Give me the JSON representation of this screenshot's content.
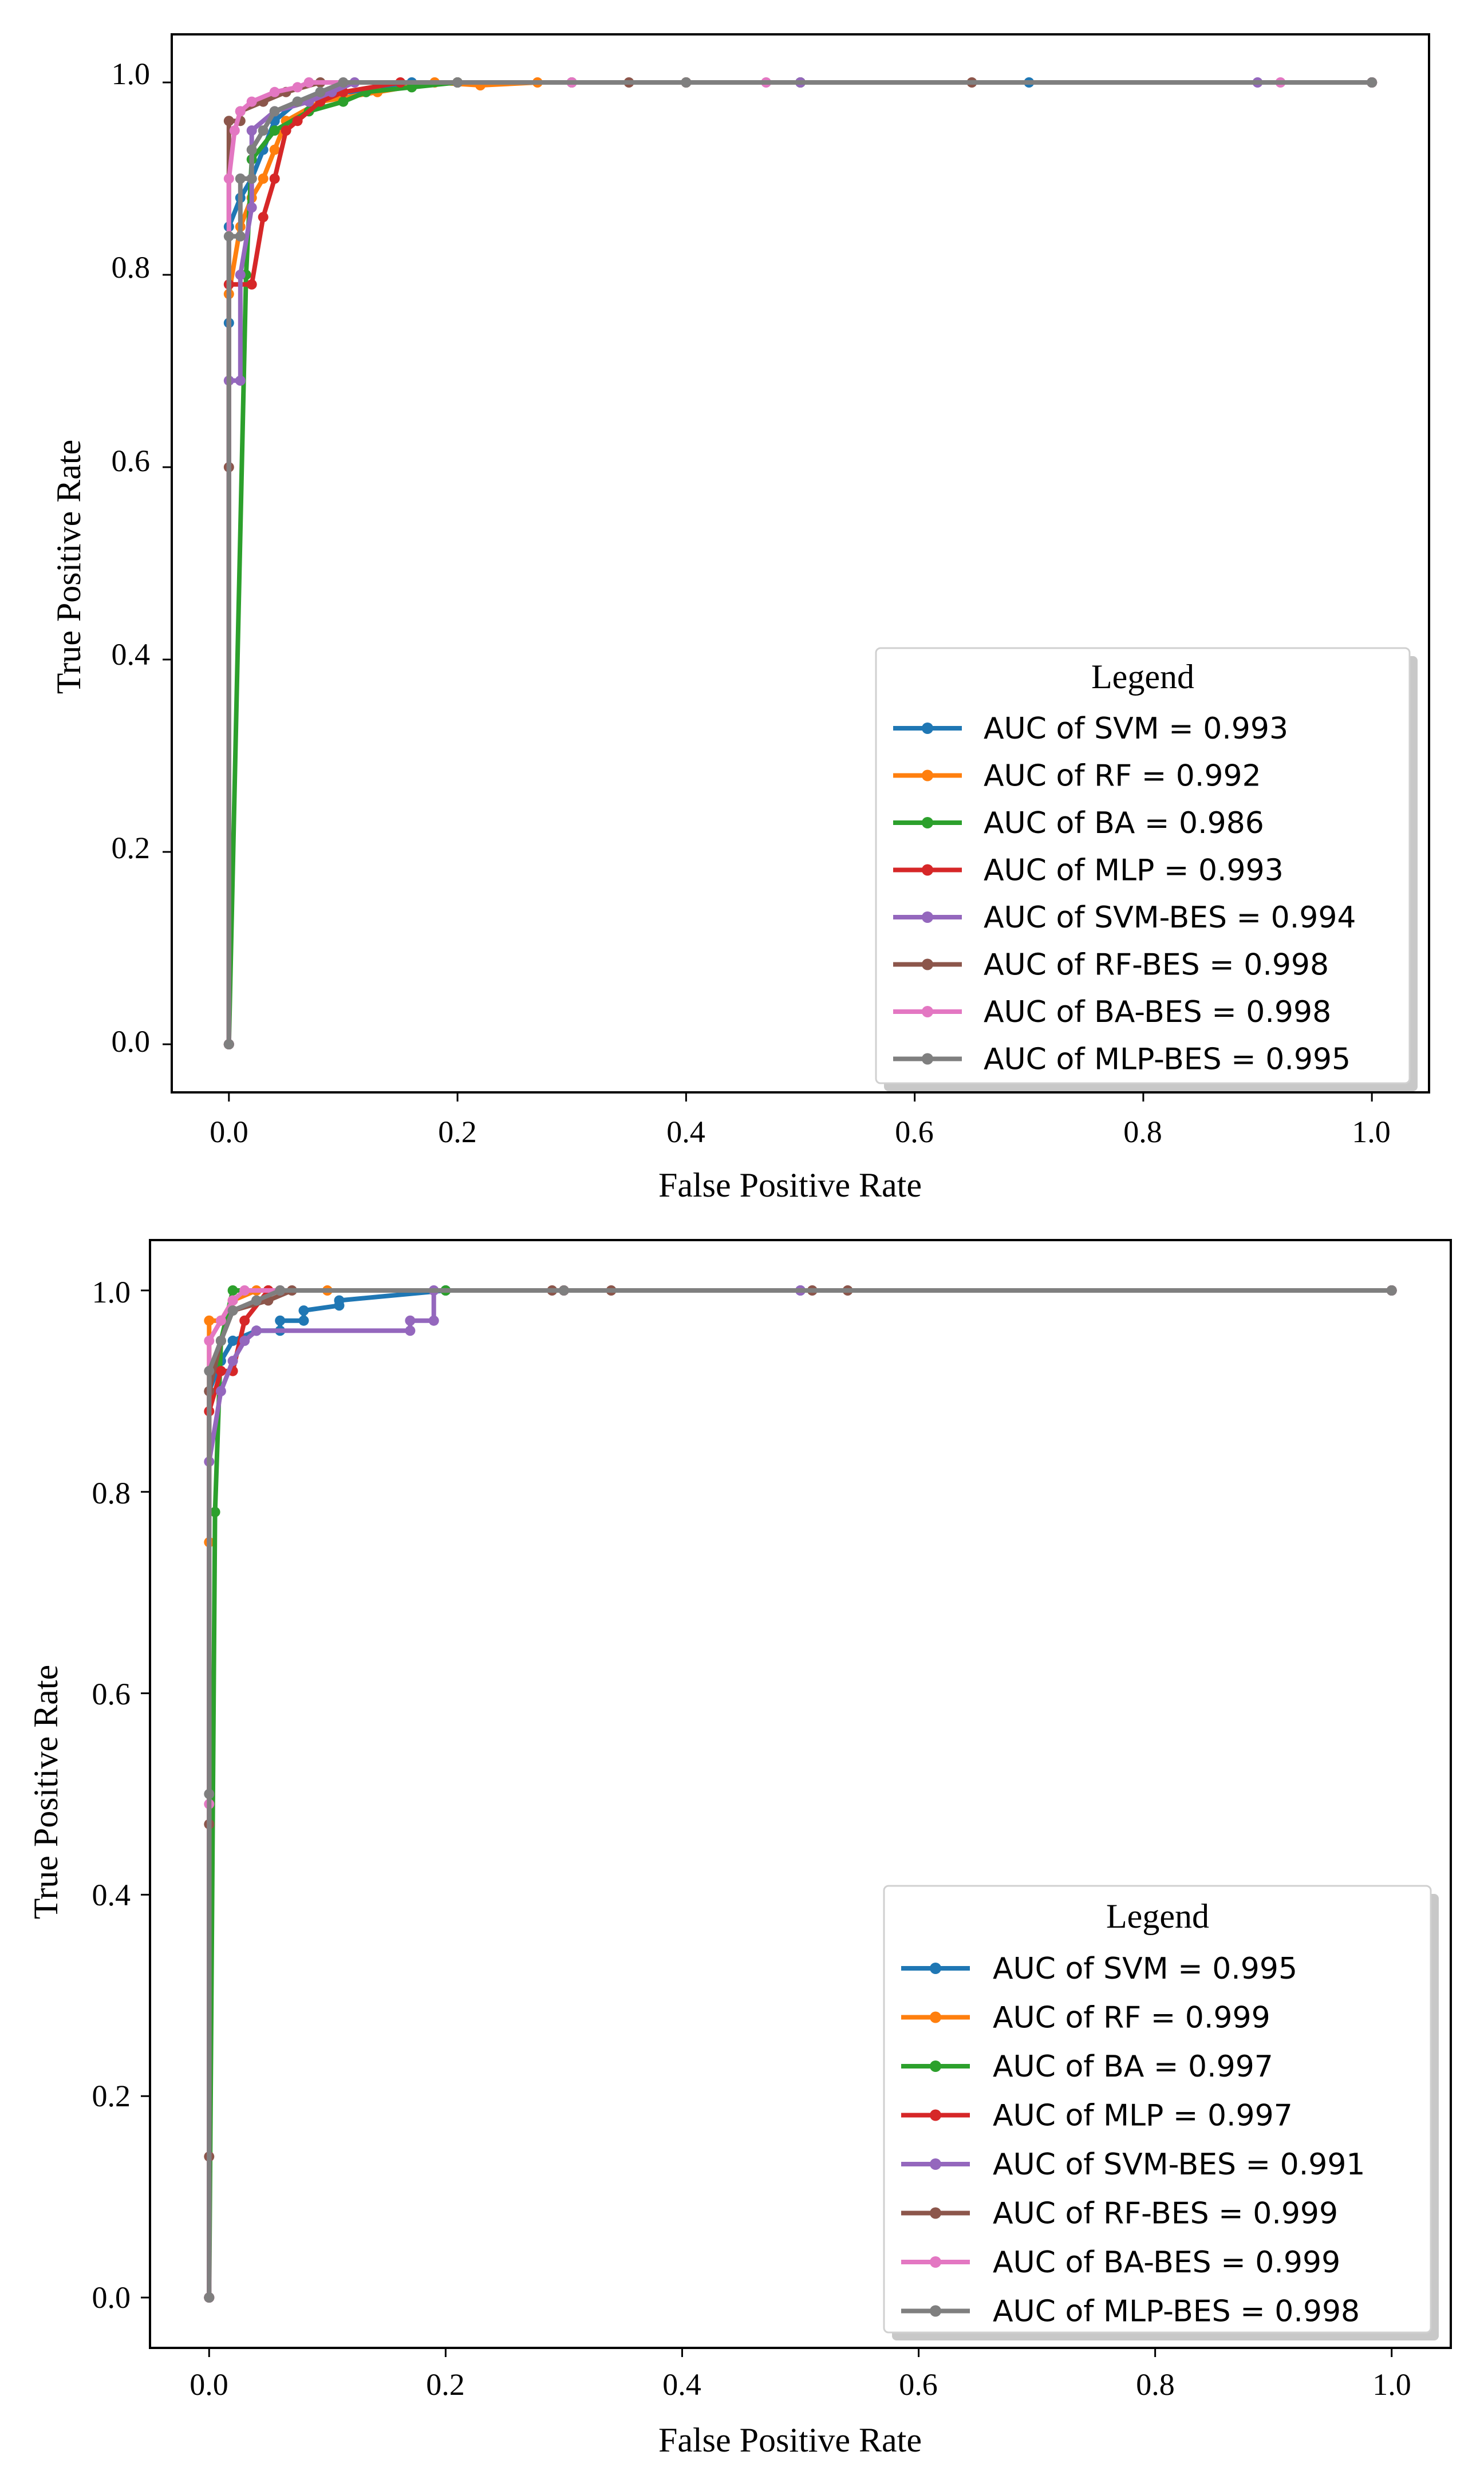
{
  "chart_data": [
    {
      "type": "line",
      "title": "",
      "xlabel": "False Positive Rate",
      "ylabel": "True Positive Rate",
      "xlim": [
        -0.05,
        1.05
      ],
      "ylim": [
        -0.05,
        1.05
      ],
      "xticks": [
        0.0,
        0.2,
        0.4,
        0.6,
        0.8,
        1.0
      ],
      "yticks": [
        0.0,
        0.2,
        0.4,
        0.6,
        0.8,
        1.0
      ],
      "xtick_labels": [
        "0.0",
        "0.2",
        "0.4",
        "0.6",
        "0.8",
        "1.0"
      ],
      "ytick_labels": [
        "0.0",
        "0.2",
        "0.4",
        "0.6",
        "0.8",
        "1.0"
      ],
      "legend": {
        "title": "Legend",
        "placement": "bottom-right"
      },
      "series": [
        {
          "name": "AUC of SVM = 0.993",
          "color": "#1f77b4",
          "points": [
            [
              0,
              0
            ],
            [
              0,
              0.75
            ],
            [
              0,
              0.85
            ],
            [
              0.01,
              0.88
            ],
            [
              0.02,
              0.9
            ],
            [
              0.03,
              0.93
            ],
            [
              0.04,
              0.96
            ],
            [
              0.06,
              0.98
            ],
            [
              0.08,
              0.99
            ],
            [
              0.12,
              0.99
            ],
            [
              0.16,
              1.0
            ],
            [
              0.3,
              1.0
            ],
            [
              0.5,
              1.0
            ],
            [
              0.7,
              1.0
            ],
            [
              1.0,
              1.0
            ]
          ]
        },
        {
          "name": "AUC of RF = 0.992",
          "color": "#ff7f0e",
          "points": [
            [
              0,
              0
            ],
            [
              0,
              0.78
            ],
            [
              0.01,
              0.85
            ],
            [
              0.02,
              0.88
            ],
            [
              0.03,
              0.9
            ],
            [
              0.04,
              0.93
            ],
            [
              0.05,
              0.96
            ],
            [
              0.08,
              0.98
            ],
            [
              0.13,
              0.99
            ],
            [
              0.18,
              1.0
            ],
            [
              0.22,
              0.997
            ],
            [
              0.27,
              1.0
            ],
            [
              0.5,
              1.0
            ],
            [
              1.0,
              1.0
            ]
          ]
        },
        {
          "name": "AUC of BA = 0.986",
          "color": "#2ca02c",
          "points": [
            [
              0,
              0
            ],
            [
              0.015,
              0.8
            ],
            [
              0.02,
              0.92
            ],
            [
              0.04,
              0.95
            ],
            [
              0.07,
              0.97
            ],
            [
              0.1,
              0.98
            ],
            [
              0.12,
              0.99
            ],
            [
              0.16,
              0.995
            ],
            [
              0.2,
              1.0
            ],
            [
              0.5,
              1.0
            ],
            [
              1.0,
              1.0
            ]
          ]
        },
        {
          "name": "AUC of MLP = 0.993",
          "color": "#d62728",
          "points": [
            [
              0,
              0
            ],
            [
              0,
              0.79
            ],
            [
              0.02,
              0.79
            ],
            [
              0.03,
              0.86
            ],
            [
              0.04,
              0.9
            ],
            [
              0.05,
              0.95
            ],
            [
              0.06,
              0.96
            ],
            [
              0.08,
              0.98
            ],
            [
              0.1,
              0.99
            ],
            [
              0.15,
              1.0
            ],
            [
              0.4,
              1.0
            ],
            [
              1.0,
              1.0
            ]
          ]
        },
        {
          "name": "AUC of SVM-BES = 0.994",
          "color": "#9467bd",
          "points": [
            [
              0,
              0
            ],
            [
              0,
              0.69
            ],
            [
              0.01,
              0.69
            ],
            [
              0.01,
              0.8
            ],
            [
              0.02,
              0.87
            ],
            [
              0.02,
              0.95
            ],
            [
              0.04,
              0.97
            ],
            [
              0.07,
              0.98
            ],
            [
              0.09,
              0.99
            ],
            [
              0.11,
              1.0
            ],
            [
              0.5,
              1.0
            ],
            [
              0.9,
              1.0
            ],
            [
              1.0,
              1.0
            ]
          ]
        },
        {
          "name": "AUC of RF-BES = 0.998",
          "color": "#8c564b",
          "points": [
            [
              0,
              0
            ],
            [
              0,
              0.6
            ],
            [
              0,
              0.96
            ],
            [
              0.01,
              0.96
            ],
            [
              0.01,
              0.97
            ],
            [
              0.03,
              0.98
            ],
            [
              0.05,
              0.99
            ],
            [
              0.08,
              1.0
            ],
            [
              0.2,
              1.0
            ],
            [
              0.3,
              1.0
            ],
            [
              0.35,
              1.0
            ],
            [
              0.4,
              1.0
            ],
            [
              0.65,
              1.0
            ],
            [
              1.0,
              1.0
            ]
          ]
        },
        {
          "name": "AUC of BA-BES = 0.998",
          "color": "#e377c2",
          "points": [
            [
              0,
              0
            ],
            [
              0,
              0.9
            ],
            [
              0.005,
              0.95
            ],
            [
              0.01,
              0.97
            ],
            [
              0.02,
              0.98
            ],
            [
              0.04,
              0.99
            ],
            [
              0.06,
              0.995
            ],
            [
              0.07,
              1.0
            ],
            [
              0.3,
              1.0
            ],
            [
              0.47,
              1.0
            ],
            [
              0.92,
              1.0
            ],
            [
              1.0,
              1.0
            ]
          ]
        },
        {
          "name": "AUC of MLP-BES = 0.995",
          "color": "#7f7f7f",
          "points": [
            [
              0,
              0
            ],
            [
              0,
              0.84
            ],
            [
              0.01,
              0.84
            ],
            [
              0.01,
              0.9
            ],
            [
              0.02,
              0.9
            ],
            [
              0.02,
              0.93
            ],
            [
              0.03,
              0.95
            ],
            [
              0.04,
              0.97
            ],
            [
              0.06,
              0.98
            ],
            [
              0.08,
              0.99
            ],
            [
              0.1,
              1.0
            ],
            [
              0.2,
              1.0
            ],
            [
              0.4,
              1.0
            ],
            [
              1.0,
              1.0
            ]
          ]
        }
      ]
    },
    {
      "type": "line",
      "title": "",
      "xlabel": "False Positive Rate",
      "ylabel": "True Positive Rate",
      "xlim": [
        -0.05,
        1.05
      ],
      "ylim": [
        -0.05,
        1.05
      ],
      "xticks": [
        0.0,
        0.2,
        0.4,
        0.6,
        0.8,
        1.0
      ],
      "yticks": [
        0.0,
        0.2,
        0.4,
        0.6,
        0.8,
        1.0
      ],
      "xtick_labels": [
        "0.0",
        "0.2",
        "0.4",
        "0.6",
        "0.8",
        "1.0"
      ],
      "ytick_labels": [
        "0.0",
        "0.2",
        "0.4",
        "0.6",
        "0.8",
        "1.0"
      ],
      "legend": {
        "title": "Legend",
        "placement": "bottom-right"
      },
      "series": [
        {
          "name": "AUC of SVM = 0.995",
          "color": "#1f77b4",
          "points": [
            [
              0,
              0
            ],
            [
              0,
              0.9
            ],
            [
              0.01,
              0.93
            ],
            [
              0.02,
              0.95
            ],
            [
              0.04,
              0.96
            ],
            [
              0.06,
              0.96
            ],
            [
              0.06,
              0.97
            ],
            [
              0.08,
              0.97
            ],
            [
              0.08,
              0.98
            ],
            [
              0.11,
              0.985
            ],
            [
              0.11,
              0.99
            ],
            [
              0.2,
              1.0
            ],
            [
              0.5,
              1.0
            ],
            [
              1.0,
              1.0
            ]
          ]
        },
        {
          "name": "AUC of RF = 0.999",
          "color": "#ff7f0e",
          "points": [
            [
              0,
              0
            ],
            [
              0,
              0.75
            ],
            [
              0,
              0.97
            ],
            [
              0.01,
              0.97
            ],
            [
              0.02,
              0.99
            ],
            [
              0.04,
              1.0
            ],
            [
              0.1,
              1.0
            ],
            [
              0.3,
              1.0
            ],
            [
              1.0,
              1.0
            ]
          ]
        },
        {
          "name": "AUC of BA = 0.997",
          "color": "#2ca02c",
          "points": [
            [
              0,
              0
            ],
            [
              0.005,
              0.78
            ],
            [
              0.01,
              0.95
            ],
            [
              0.02,
              1.0
            ],
            [
              0.05,
              1.0
            ],
            [
              0.2,
              1.0
            ],
            [
              1.0,
              1.0
            ]
          ]
        },
        {
          "name": "AUC of MLP = 0.997",
          "color": "#d62728",
          "points": [
            [
              0,
              0
            ],
            [
              0,
              0.88
            ],
            [
              0.01,
              0.92
            ],
            [
              0.02,
              0.92
            ],
            [
              0.03,
              0.97
            ],
            [
              0.05,
              1.0
            ],
            [
              0.3,
              1.0
            ],
            [
              1.0,
              1.0
            ]
          ]
        },
        {
          "name": "AUC of SVM-BES = 0.991",
          "color": "#9467bd",
          "points": [
            [
              0,
              0
            ],
            [
              0,
              0.83
            ],
            [
              0.01,
              0.9
            ],
            [
              0.02,
              0.93
            ],
            [
              0.03,
              0.95
            ],
            [
              0.04,
              0.96
            ],
            [
              0.17,
              0.96
            ],
            [
              0.17,
              0.97
            ],
            [
              0.19,
              0.97
            ],
            [
              0.19,
              1.0
            ],
            [
              0.5,
              1.0
            ],
            [
              1.0,
              1.0
            ]
          ]
        },
        {
          "name": "AUC of RF-BES = 0.999",
          "color": "#8c564b",
          "points": [
            [
              0,
              0
            ],
            [
              0,
              0.14
            ],
            [
              0,
              0.47
            ],
            [
              0,
              0.9
            ],
            [
              0.01,
              0.95
            ],
            [
              0.02,
              0.98
            ],
            [
              0.05,
              0.99
            ],
            [
              0.07,
              1.0
            ],
            [
              0.29,
              1.0
            ],
            [
              0.34,
              1.0
            ],
            [
              0.51,
              1.0
            ],
            [
              0.54,
              1.0
            ],
            [
              1.0,
              1.0
            ]
          ]
        },
        {
          "name": "AUC of BA-BES = 0.999",
          "color": "#e377c2",
          "points": [
            [
              0,
              0
            ],
            [
              0,
              0.49
            ],
            [
              0,
              0.95
            ],
            [
              0.01,
              0.97
            ],
            [
              0.02,
              0.99
            ],
            [
              0.03,
              1.0
            ],
            [
              0.06,
              1.0
            ],
            [
              0.3,
              1.0
            ],
            [
              1.0,
              1.0
            ]
          ]
        },
        {
          "name": "AUC of MLP-BES = 0.998",
          "color": "#7f7f7f",
          "points": [
            [
              0,
              0
            ],
            [
              0,
              0.5
            ],
            [
              0,
              0.92
            ],
            [
              0.01,
              0.95
            ],
            [
              0.02,
              0.98
            ],
            [
              0.04,
              0.99
            ],
            [
              0.06,
              1.0
            ],
            [
              0.3,
              1.0
            ],
            [
              1.0,
              1.0
            ]
          ]
        }
      ]
    }
  ]
}
